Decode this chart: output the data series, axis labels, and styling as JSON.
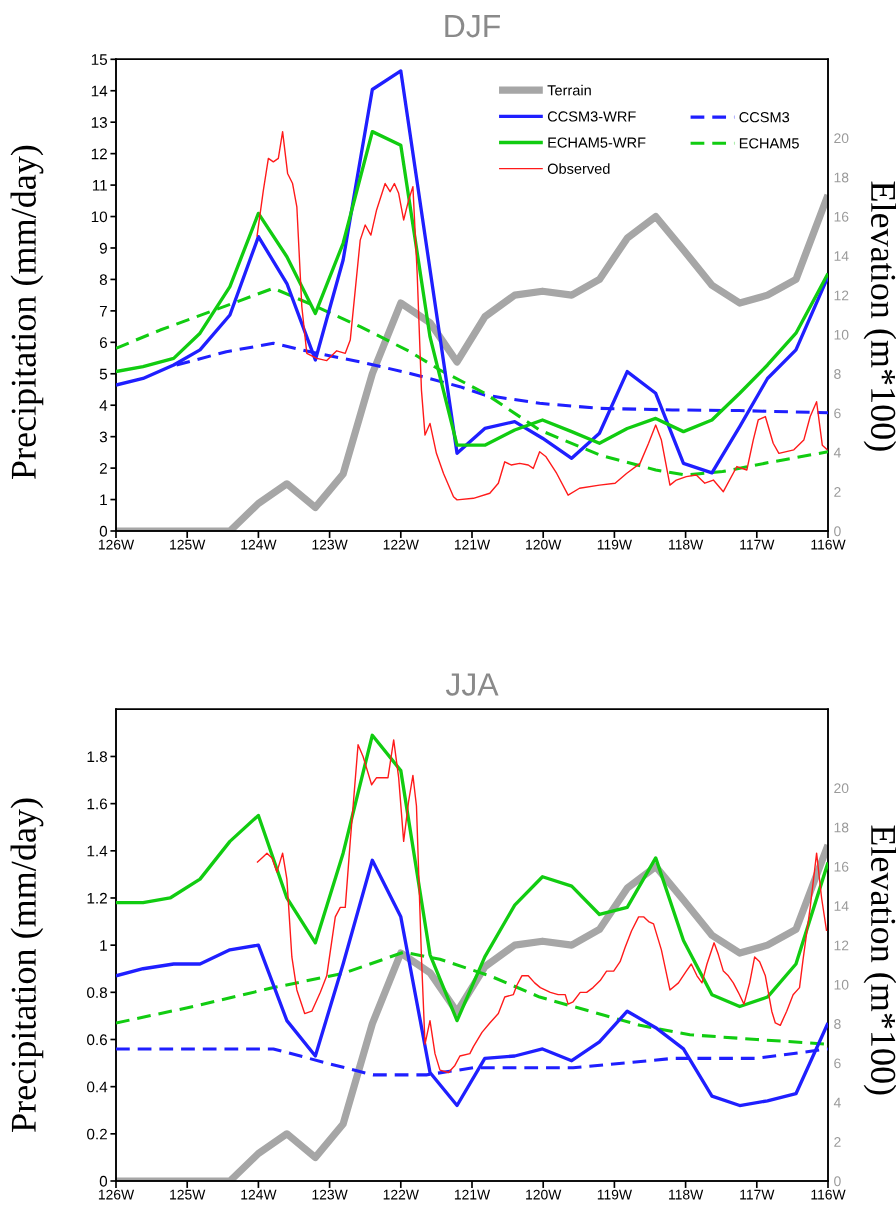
{
  "chart_data": [
    {
      "type": "line",
      "title": "DJF",
      "ylabel": "Precipitation (mm/day)",
      "y2label": "Elevation (m*100)",
      "legend": "top right",
      "xlim": [
        -126,
        -116
      ],
      "xticks": [
        {
          "value": -126,
          "label": "126W"
        },
        {
          "value": -125,
          "label": "125W"
        },
        {
          "value": -124,
          "label": "124W"
        },
        {
          "value": -123,
          "label": "123W"
        },
        {
          "value": -122,
          "label": "122W"
        },
        {
          "value": -121,
          "label": "121W"
        },
        {
          "value": -120,
          "label": "120W"
        },
        {
          "value": -119,
          "label": "119W"
        },
        {
          "value": -118,
          "label": "118W"
        },
        {
          "value": -117,
          "label": "117W"
        },
        {
          "value": -116,
          "label": "116W"
        }
      ],
      "ylim": [
        0,
        15
      ],
      "yticks": [
        0,
        1,
        2,
        3,
        4,
        5,
        6,
        7,
        8,
        9,
        10,
        11,
        12,
        13,
        14,
        15
      ],
      "y2lim": [
        0,
        24
      ],
      "y2ticks": [
        0,
        2,
        4,
        6,
        8,
        10,
        12,
        14,
        16,
        18,
        20
      ],
      "series": [
        {
          "name": "Terrain",
          "color": "#a6a6a6",
          "axis": "y2",
          "line_style": "solid",
          "x": [
            -126,
            -124.4,
            -124.0,
            -123.6,
            -123.2,
            -122.81,
            -122.4,
            -122.0,
            -121.59,
            -121.21,
            -120.82,
            -120.4,
            -120.01,
            -119.6,
            -119.21,
            -118.82,
            -118.42,
            -118.03,
            -117.63,
            -117.24,
            -116.85,
            -116.45,
            -116.0
          ],
          "values": [
            0,
            0,
            1.4,
            2.4,
            1.2,
            2.9,
            8.0,
            11.6,
            10.6,
            8.6,
            10.9,
            12.0,
            12.2,
            12.0,
            12.8,
            14.9,
            16.0,
            14.3,
            12.5,
            11.6,
            12.0,
            12.8,
            17.1
          ]
        },
        {
          "name": "CCSM3-WRF",
          "color": "#1f1fff",
          "line_style": "solid",
          "x": [
            -126,
            -125.62,
            -125.19,
            -124.82,
            -124.4,
            -124.0,
            -123.6,
            -123.2,
            -122.81,
            -122.4,
            -122.0,
            -121.21,
            -120.82,
            -120.4,
            -120.01,
            -119.6,
            -119.21,
            -118.82,
            -118.42,
            -118.03,
            -117.63,
            -117.24,
            -116.85,
            -116.45,
            -116.0
          ],
          "values": [
            4.64,
            4.85,
            5.28,
            5.76,
            6.87,
            9.36,
            7.87,
            5.44,
            8.62,
            14.04,
            14.63,
            2.47,
            3.26,
            3.48,
            2.95,
            2.31,
            3.11,
            5.07,
            4.38,
            2.15,
            1.85,
            3.32,
            4.85,
            5.76,
            8.09
          ]
        },
        {
          "name": "ECHAM5-WRF",
          "color": "#11cc11",
          "line_style": "solid",
          "x": [
            -126,
            -125.62,
            -125.19,
            -124.82,
            -124.4,
            -124.0,
            -123.6,
            -123.2,
            -122.81,
            -122.4,
            -122.0,
            -121.59,
            -121.21,
            -120.82,
            -120.4,
            -120.01,
            -119.6,
            -119.21,
            -118.82,
            -118.42,
            -118.03,
            -117.63,
            -117.24,
            -116.85,
            -116.45,
            -116.0
          ],
          "values": [
            5.07,
            5.23,
            5.49,
            6.29,
            7.77,
            10.1,
            8.72,
            6.92,
            9.15,
            12.7,
            12.27,
            6.18,
            2.73,
            2.73,
            3.21,
            3.53,
            3.16,
            2.79,
            3.26,
            3.58,
            3.16,
            3.53,
            4.38,
            5.28,
            6.29,
            8.19
          ]
        },
        {
          "name": "Observed",
          "color": "#ff1a1a",
          "line_style": "solid",
          "x": [
            -124.02,
            -123.93,
            -123.86,
            -123.79,
            -123.72,
            -123.66,
            -123.59,
            -123.52,
            -123.46,
            -123.39,
            -123.32,
            -123.18,
            -123.04,
            -122.9,
            -122.78,
            -122.71,
            -122.64,
            -122.57,
            -122.5,
            -122.42,
            -122.34,
            -122.22,
            -122.15,
            -122.09,
            -122.03,
            -121.96,
            -121.89,
            -121.83,
            -121.77,
            -121.71,
            -121.66,
            -121.59,
            -121.5,
            -121.4,
            -121.26,
            -121.21,
            -120.98,
            -120.75,
            -120.63,
            -120.54,
            -120.45,
            -120.33,
            -120.21,
            -120.14,
            -120.05,
            -119.96,
            -119.81,
            -119.65,
            -119.49,
            -119.21,
            -118.99,
            -118.83,
            -118.64,
            -118.52,
            -118.42,
            -118.34,
            -118.22,
            -118.13,
            -117.99,
            -117.85,
            -117.73,
            -117.61,
            -117.47,
            -117.28,
            -117.14,
            -117.05,
            -116.98,
            -116.88,
            -116.77,
            -116.69,
            -116.48,
            -116.34,
            -116.25,
            -116.16,
            -116.08,
            -116.01
          ],
          "values": [
            9.36,
            10.84,
            11.85,
            11.74,
            11.85,
            12.7,
            11.37,
            11.05,
            10.31,
            7.13,
            5.65,
            5.49,
            5.42,
            5.73,
            5.65,
            6.07,
            7.66,
            9.25,
            9.73,
            9.41,
            10.21,
            11.05,
            10.79,
            11.05,
            10.74,
            9.89,
            10.52,
            10.95,
            8.19,
            4.48,
            3.05,
            3.42,
            2.47,
            1.83,
            1.09,
            0.99,
            1.04,
            1.2,
            1.52,
            2.2,
            2.1,
            2.15,
            2.1,
            1.99,
            2.52,
            2.36,
            1.83,
            1.14,
            1.36,
            1.46,
            1.52,
            1.83,
            2.15,
            2.79,
            3.37,
            2.89,
            1.46,
            1.62,
            1.73,
            1.78,
            1.52,
            1.62,
            1.25,
            2.05,
            1.94,
            2.89,
            3.53,
            3.64,
            2.79,
            2.47,
            2.58,
            2.89,
            3.64,
            4.11,
            2.73,
            2.58
          ]
        },
        {
          "name": "CCSM3",
          "color": "#1f1fff",
          "line_style": "dashed",
          "x": [
            -125.15,
            -124.45,
            -123.79,
            -123.18,
            -122.57,
            -121.87,
            -121.17,
            -120.82,
            -120.05,
            -119.21,
            -118.19,
            -117.25,
            -116.0
          ],
          "values": [
            5.28,
            5.7,
            5.97,
            5.65,
            5.38,
            5.01,
            4.59,
            4.32,
            4.06,
            3.9,
            3.85,
            3.83,
            3.76
          ]
        },
        {
          "name": "ECHAM5",
          "color": "#11cc11",
          "line_style": "dashed",
          "x": [
            -126,
            -125.38,
            -124.68,
            -123.79,
            -123.18,
            -122.57,
            -121.87,
            -121.45,
            -120.82,
            -120.05,
            -119.21,
            -118.42,
            -117.99,
            -117.48,
            -116.78,
            -116.0
          ],
          "values": [
            5.81,
            6.39,
            6.97,
            7.72,
            7.13,
            6.5,
            5.7,
            5.12,
            4.38,
            3.21,
            2.42,
            1.94,
            1.78,
            1.89,
            2.2,
            2.52
          ]
        }
      ]
    },
    {
      "type": "line",
      "title": "JJA",
      "ylabel": "Precipitation (mm/day)",
      "y2label": "Elevation (m*100)",
      "xlim": [
        -126,
        -116
      ],
      "xticks": [
        {
          "value": -126,
          "label": "126W"
        },
        {
          "value": -125,
          "label": "125W"
        },
        {
          "value": -124,
          "label": "124W"
        },
        {
          "value": -123,
          "label": "123W"
        },
        {
          "value": -122,
          "label": "122W"
        },
        {
          "value": -121,
          "label": "121W"
        },
        {
          "value": -120,
          "label": "120W"
        },
        {
          "value": -119,
          "label": "119W"
        },
        {
          "value": -118,
          "label": "118W"
        },
        {
          "value": -117,
          "label": "117W"
        },
        {
          "value": -116,
          "label": "116W"
        }
      ],
      "ylim": [
        0,
        2
      ],
      "yticks": [
        0,
        0.2,
        0.4,
        0.6,
        0.8,
        1,
        1.2,
        1.4,
        1.6,
        1.8
      ],
      "y2lim": [
        0,
        24
      ],
      "y2ticks": [
        0,
        2,
        4,
        6,
        8,
        10,
        12,
        14,
        16,
        18,
        20
      ],
      "series": [
        {
          "color": "#a6a6a6",
          "axis": "y2",
          "line_style": "solid",
          "x": [
            -126,
            -124.4,
            -124.0,
            -123.6,
            -123.2,
            -122.81,
            -122.4,
            -122.0,
            -121.59,
            -121.21,
            -120.82,
            -120.4,
            -120.01,
            -119.6,
            -119.21,
            -118.82,
            -118.42,
            -118.03,
            -117.63,
            -117.24,
            -116.85,
            -116.45,
            -116.0
          ],
          "values": [
            0,
            0,
            1.4,
            2.4,
            1.2,
            2.9,
            8.0,
            11.6,
            10.6,
            8.6,
            10.9,
            12.0,
            12.2,
            12.0,
            12.8,
            14.9,
            16.0,
            14.3,
            12.5,
            11.6,
            12.0,
            12.8,
            17.1
          ]
        },
        {
          "color": "#1f1fff",
          "line_style": "solid",
          "x": [
            -126,
            -125.62,
            -125.19,
            -124.82,
            -124.4,
            -124.0,
            -123.6,
            -123.2,
            -122.81,
            -122.4,
            -122.0,
            -121.59,
            -121.21,
            -120.82,
            -120.4,
            -120.01,
            -119.6,
            -119.21,
            -118.82,
            -118.42,
            -118.03,
            -117.63,
            -117.24,
            -116.85,
            -116.45,
            -116.0
          ],
          "values": [
            0.87,
            0.9,
            0.92,
            0.92,
            0.98,
            1.0,
            0.68,
            0.53,
            0.92,
            1.36,
            1.12,
            0.46,
            0.32,
            0.52,
            0.53,
            0.56,
            0.51,
            0.59,
            0.72,
            0.65,
            0.56,
            0.36,
            0.32,
            0.34,
            0.37,
            0.67
          ]
        },
        {
          "color": "#11cc11",
          "line_style": "solid",
          "x": [
            -126,
            -125.62,
            -125.24,
            -124.82,
            -124.4,
            -124.0,
            -123.6,
            -123.2,
            -122.81,
            -122.4,
            -122.0,
            -121.59,
            -121.21,
            -120.82,
            -120.4,
            -120.01,
            -119.6,
            -119.21,
            -118.82,
            -118.42,
            -118.03,
            -117.63,
            -117.24,
            -116.85,
            -116.45,
            -116.0
          ],
          "values": [
            1.18,
            1.18,
            1.2,
            1.28,
            1.44,
            1.55,
            1.2,
            1.01,
            1.39,
            1.89,
            1.74,
            0.96,
            0.68,
            0.95,
            1.17,
            1.29,
            1.25,
            1.13,
            1.16,
            1.37,
            1.02,
            0.79,
            0.74,
            0.78,
            0.92,
            1.35
          ]
        },
        {
          "color": "#ff1a1a",
          "line_style": "solid",
          "x": [
            -124.02,
            -123.95,
            -123.88,
            -123.81,
            -123.74,
            -123.66,
            -123.6,
            -123.53,
            -123.46,
            -123.35,
            -123.25,
            -123.13,
            -123.04,
            -122.92,
            -122.85,
            -122.78,
            -122.71,
            -122.6,
            -122.53,
            -122.41,
            -122.34,
            -122.18,
            -122.1,
            -122.03,
            -121.96,
            -121.89,
            -121.83,
            -121.78,
            -121.71,
            -121.66,
            -121.59,
            -121.52,
            -121.45,
            -121.33,
            -121.24,
            -121.17,
            -121.03,
            -120.98,
            -120.86,
            -120.75,
            -120.63,
            -120.54,
            -120.42,
            -120.37,
            -120.3,
            -120.21,
            -120.12,
            -120.04,
            -119.9,
            -119.79,
            -119.69,
            -119.65,
            -119.58,
            -119.48,
            -119.39,
            -119.3,
            -119.2,
            -119.11,
            -119.01,
            -118.92,
            -118.85,
            -118.76,
            -118.66,
            -118.59,
            -118.52,
            -118.45,
            -118.41,
            -118.34,
            -118.22,
            -118.1,
            -117.99,
            -117.92,
            -117.84,
            -117.77,
            -117.7,
            -117.6,
            -117.54,
            -117.47,
            -117.4,
            -117.33,
            -117.26,
            -117.18,
            -117.1,
            -117.03,
            -116.96,
            -116.88,
            -116.79,
            -116.74,
            -116.67,
            -116.58,
            -116.49,
            -116.4,
            -116.35,
            -116.25,
            -116.16,
            -116.09,
            -116.02
          ],
          "values": [
            1.35,
            1.37,
            1.39,
            1.37,
            1.31,
            1.39,
            1.28,
            0.95,
            0.81,
            0.71,
            0.72,
            0.8,
            0.87,
            1.12,
            1.16,
            1.16,
            1.44,
            1.85,
            1.8,
            1.68,
            1.71,
            1.71,
            1.87,
            1.71,
            1.44,
            1.61,
            1.72,
            1.59,
            0.95,
            0.58,
            0.68,
            0.54,
            0.47,
            0.46,
            0.49,
            0.53,
            0.54,
            0.57,
            0.63,
            0.67,
            0.71,
            0.78,
            0.79,
            0.83,
            0.87,
            0.87,
            0.84,
            0.82,
            0.8,
            0.79,
            0.79,
            0.75,
            0.76,
            0.8,
            0.8,
            0.82,
            0.85,
            0.89,
            0.89,
            0.93,
            0.99,
            1.06,
            1.12,
            1.12,
            1.1,
            1.09,
            1.05,
            0.98,
            0.81,
            0.84,
            0.89,
            0.92,
            0.87,
            0.84,
            0.92,
            1.01,
            0.96,
            0.89,
            0.87,
            0.84,
            0.8,
            0.75,
            0.84,
            0.95,
            0.93,
            0.87,
            0.72,
            0.67,
            0.66,
            0.72,
            0.79,
            0.82,
            0.94,
            1.16,
            1.39,
            1.2,
            1.06
          ]
        },
        {
          "color": "#1f1fff",
          "line_style": "dashed",
          "x": [
            -126,
            -124.91,
            -123.79,
            -123.04,
            -122.39,
            -121.64,
            -120.98,
            -119.58,
            -118.17,
            -117.0,
            -116.0
          ],
          "values": [
            0.56,
            0.56,
            0.56,
            0.5,
            0.45,
            0.45,
            0.48,
            0.48,
            0.52,
            0.52,
            0.56
          ]
        },
        {
          "color": "#11cc11",
          "line_style": "dashed",
          "x": [
            -126,
            -124.91,
            -123.79,
            -122.81,
            -121.96,
            -121.45,
            -120.75,
            -120.05,
            -119.58,
            -118.64,
            -117.94,
            -117.0,
            -116.0
          ],
          "values": [
            0.67,
            0.74,
            0.82,
            0.88,
            0.97,
            0.94,
            0.87,
            0.78,
            0.74,
            0.66,
            0.62,
            0.6,
            0.58
          ]
        }
      ]
    }
  ]
}
